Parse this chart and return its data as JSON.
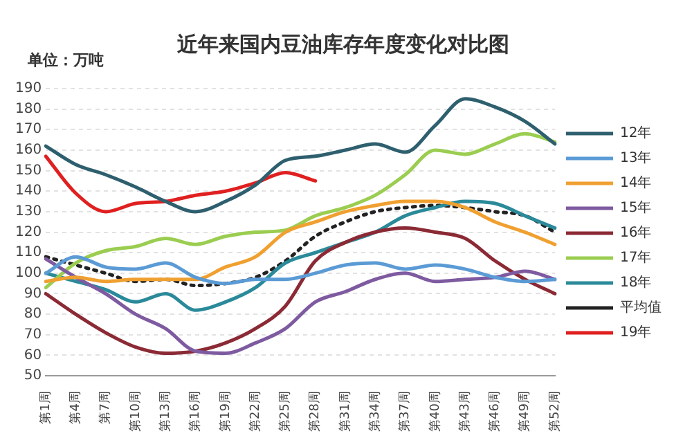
{
  "chart_data": {
    "type": "line",
    "title": "近年来国内豆油库存年度变化对比图",
    "ylabel": "单位：万吨",
    "categories": [
      "第1周",
      "第4周",
      "第7周",
      "第10周",
      "第13周",
      "第16周",
      "第19周",
      "第22周",
      "第25周",
      "第28周",
      "第31周",
      "第34周",
      "第37周",
      "第40周",
      "第43周",
      "第46周",
      "第49周",
      "第52周"
    ],
    "series": [
      {
        "name": "12年",
        "color": "#2e5f6e",
        "values": [
          162,
          153,
          148,
          142,
          135,
          130,
          135,
          143,
          155,
          157,
          160,
          163,
          159,
          172,
          185,
          181,
          174,
          163
        ]
      },
      {
        "name": "13年",
        "color": "#5b9bd5",
        "values": [
          100,
          108,
          103,
          102,
          105,
          98,
          95,
          97,
          97,
          100,
          104,
          105,
          102,
          104,
          102,
          98,
          96,
          97
        ]
      },
      {
        "name": "14年",
        "color": "#f0a030",
        "values": [
          96,
          98,
          96,
          97,
          97,
          97,
          103,
          108,
          120,
          125,
          130,
          133,
          135,
          135,
          132,
          125,
          120,
          114
        ]
      },
      {
        "name": "15年",
        "color": "#7e5aa0",
        "values": [
          107,
          98,
          90,
          80,
          73,
          62,
          61,
          66,
          73,
          86,
          91,
          97,
          100,
          96,
          97,
          98,
          101,
          97
        ]
      },
      {
        "name": "16年",
        "color": "#8b2a35",
        "values": [
          90,
          80,
          71,
          64,
          61,
          62,
          66,
          73,
          84,
          106,
          115,
          120,
          122,
          120,
          117,
          106,
          97,
          90
        ]
      },
      {
        "name": "17年",
        "color": "#9acd50",
        "values": [
          93,
          105,
          111,
          113,
          117,
          114,
          118,
          120,
          121,
          128,
          132,
          138,
          148,
          160,
          158,
          163,
          168,
          164
        ]
      },
      {
        "name": "18年",
        "color": "#2a8a9a",
        "values": [
          100,
          96,
          92,
          86,
          90,
          82,
          86,
          93,
          105,
          110,
          115,
          120,
          128,
          132,
          135,
          134,
          128,
          122
        ]
      },
      {
        "name": "平均值",
        "color": "#222222",
        "line_style": "dotted",
        "values": [
          108,
          104,
          100,
          96,
          97,
          94,
          95,
          98,
          106,
          118,
          125,
          130,
          132,
          133,
          132,
          130,
          128,
          120
        ]
      },
      {
        "name": "19年",
        "color": "#e02020",
        "values": [
          157,
          139,
          130,
          134,
          135,
          138,
          140,
          144,
          149,
          145,
          null,
          null,
          null,
          null,
          null,
          null,
          null,
          null
        ]
      }
    ],
    "ylim": [
      50,
      190
    ],
    "yticks": [
      50,
      60,
      70,
      80,
      90,
      100,
      110,
      120,
      130,
      140,
      150,
      160,
      170,
      180,
      190
    ],
    "grid": "y",
    "legend": "right",
    "marker": "none"
  }
}
